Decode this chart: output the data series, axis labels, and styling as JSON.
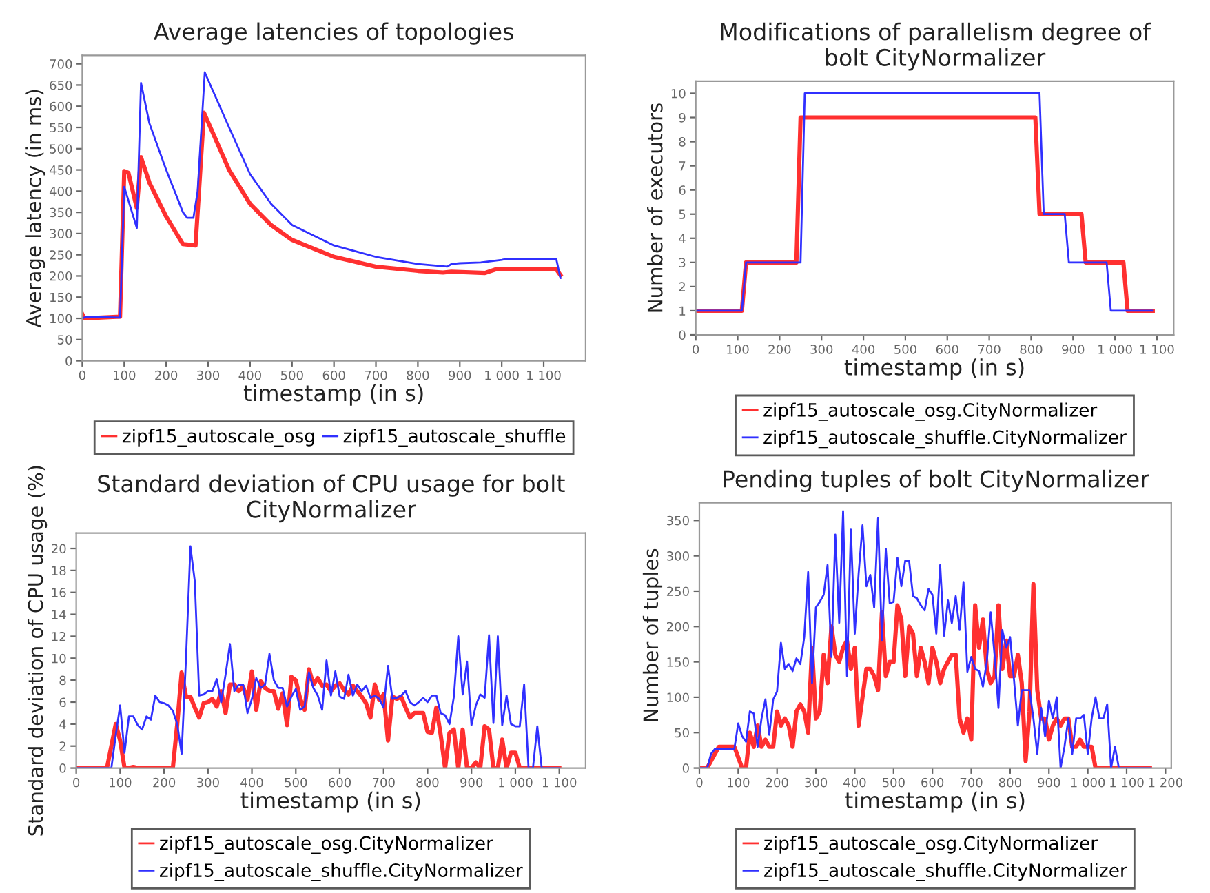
{
  "chart_data": [
    {
      "type": "line",
      "title": "Average latencies of topologies",
      "xlabel": "timestamp (in s)",
      "ylabel": "Average latency (in ms)",
      "xlim": [
        0,
        1200
      ],
      "xticks": [
        0,
        100,
        200,
        300,
        400,
        500,
        600,
        700,
        800,
        900,
        {
          "value": 1000,
          "label": "1 000"
        },
        {
          "value": 1100,
          "label": "1 100"
        }
      ],
      "ylim": [
        0,
        720
      ],
      "yticks": [
        0,
        50,
        100,
        150,
        200,
        250,
        300,
        350,
        400,
        450,
        500,
        550,
        600,
        650,
        700
      ],
      "grid": false,
      "legend": "bottom",
      "series": [
        {
          "name": "zipf15_autoscale_osg",
          "color": "#ff3030",
          "x": [
            0,
            5,
            90,
            100,
            110,
            130,
            140,
            160,
            200,
            240,
            270,
            290,
            350,
            400,
            450,
            500,
            600,
            700,
            800,
            860,
            880,
            960,
            990,
            1130,
            1140
          ],
          "values": [
            110,
            100,
            104,
            447,
            443,
            360,
            480,
            420,
            340,
            275,
            272,
            585,
            450,
            370,
            320,
            285,
            245,
            222,
            212,
            208,
            210,
            207,
            217,
            216,
            202
          ]
        },
        {
          "name": "zipf15_autoscale_shuffle",
          "color": "#3030ff",
          "x": [
            0,
            10,
            90,
            100,
            130,
            140,
            160,
            200,
            220,
            240,
            250,
            265,
            275,
            292,
            350,
            400,
            450,
            500,
            600,
            700,
            800,
            870,
            880,
            900,
            950,
            1000,
            1010,
            1130,
            1140
          ],
          "values": [
            100,
            104,
            102,
            410,
            313,
            655,
            560,
            450,
            400,
            350,
            337,
            337,
            400,
            680,
            550,
            440,
            370,
            320,
            272,
            245,
            228,
            222,
            228,
            230,
            232,
            238,
            240,
            240,
            195
          ]
        }
      ]
    },
    {
      "type": "line",
      "title": "Modifications of parallelism degree of bolt CityNormalizer",
      "xlabel": "timestamp (in s)",
      "ylabel": "Number of executors",
      "xlim": [
        0,
        1140
      ],
      "xticks": [
        0,
        100,
        200,
        300,
        400,
        500,
        600,
        700,
        800,
        900,
        {
          "value": 1000,
          "label": "1 000"
        },
        {
          "value": 1100,
          "label": "1 100"
        }
      ],
      "ylim": [
        0,
        10.5
      ],
      "yticks": [
        0,
        1,
        2,
        3,
        4,
        5,
        6,
        7,
        8,
        9,
        10
      ],
      "grid": false,
      "legend": "bottom",
      "series": [
        {
          "name": "zipf15_autoscale_osg.CityNormalizer",
          "color": "#ff3030",
          "x": [
            0,
            110,
            120,
            240,
            250,
            810,
            820,
            920,
            930,
            1020,
            1030,
            1090
          ],
          "values": [
            1,
            1,
            3,
            3,
            9,
            9,
            5,
            5,
            3,
            3,
            1,
            1
          ]
        },
        {
          "name": "zipf15_autoscale_shuffle.CityNormalizer",
          "color": "#3030ff",
          "x": [
            0,
            110,
            120,
            250,
            260,
            820,
            830,
            880,
            890,
            980,
            990,
            1090
          ],
          "values": [
            1,
            1,
            3,
            3,
            10,
            10,
            5,
            5,
            3,
            3,
            1,
            1
          ]
        }
      ]
    },
    {
      "type": "line",
      "title": "Standard deviation of CPU usage for bolt CityNormalizer",
      "xlabel": "timestamp (in s)",
      "ylabel": "Standard deviation of CPU usage (%)",
      "xlim": [
        0,
        1160
      ],
      "xticks": [
        0,
        100,
        200,
        300,
        400,
        500,
        600,
        700,
        800,
        900,
        {
          "value": 1000,
          "label": "1 000"
        },
        {
          "value": 1100,
          "label": "1 100"
        }
      ],
      "ylim": [
        0,
        21.4
      ],
      "yticks": [
        0,
        2,
        4,
        6,
        8,
        10,
        12,
        14,
        16,
        18,
        20
      ],
      "grid": false,
      "legend": "bottom",
      "series": [
        {
          "name": "zipf15_autoscale_osg.CityNormalizer",
          "color": "#ff3030",
          "x": [
            0,
            70,
            80,
            90,
            100,
            110,
            120,
            130,
            140,
            220,
            230,
            240,
            250,
            260,
            270,
            280,
            290,
            300,
            310,
            320,
            330,
            340,
            350,
            360,
            370,
            380,
            390,
            400,
            410,
            420,
            430,
            440,
            450,
            460,
            470,
            480,
            490,
            500,
            510,
            520,
            530,
            540,
            550,
            560,
            570,
            580,
            590,
            600,
            610,
            620,
            630,
            640,
            650,
            660,
            670,
            680,
            690,
            700,
            710,
            720,
            730,
            740,
            750,
            760,
            770,
            780,
            790,
            800,
            810,
            820,
            830,
            840,
            850,
            860,
            870,
            880,
            890,
            900,
            910,
            920,
            930,
            940,
            950,
            960,
            970,
            980,
            990,
            1000,
            1010,
            1020,
            1100
          ],
          "values": [
            0,
            0,
            2,
            4,
            2.5,
            0,
            0,
            0.1,
            0,
            0,
            4,
            8.7,
            6.5,
            6.5,
            5.5,
            4.6,
            5.9,
            6,
            6.3,
            5.6,
            7,
            5,
            7.6,
            7.6,
            7,
            7.4,
            6.2,
            8.8,
            5.3,
            7.9,
            7.3,
            7,
            7,
            5.4,
            6.8,
            3.9,
            8.3,
            8,
            6.3,
            5.3,
            9,
            7.6,
            8.2,
            7.5,
            7.6,
            7,
            7.5,
            7.7,
            7.1,
            6.7,
            7.5,
            7,
            6.5,
            5.9,
            4.6,
            7.6,
            6.2,
            6.7,
            2.5,
            6.5,
            6.3,
            6.5,
            5.5,
            4.6,
            5,
            5,
            5,
            3.3,
            3.2,
            5.5,
            3,
            0,
            3.2,
            3.5,
            0,
            3.5,
            0,
            0,
            0.5,
            0,
            3.8,
            3.5,
            0,
            0,
            2.6,
            0,
            1.4,
            1.4,
            0,
            0,
            0
          ]
        },
        {
          "name": "zipf15_autoscale_shuffle.CityNormalizer",
          "color": "#3030ff",
          "x": [
            0,
            80,
            90,
            100,
            110,
            120,
            130,
            140,
            150,
            160,
            170,
            180,
            190,
            200,
            210,
            220,
            230,
            240,
            250,
            260,
            270,
            280,
            290,
            300,
            310,
            320,
            330,
            340,
            350,
            360,
            370,
            380,
            390,
            400,
            410,
            420,
            430,
            440,
            450,
            460,
            470,
            480,
            490,
            500,
            510,
            520,
            530,
            540,
            550,
            560,
            570,
            580,
            590,
            600,
            610,
            620,
            630,
            640,
            650,
            660,
            670,
            680,
            690,
            700,
            710,
            720,
            730,
            740,
            750,
            760,
            770,
            780,
            790,
            800,
            810,
            820,
            830,
            840,
            850,
            860,
            870,
            880,
            890,
            900,
            910,
            920,
            930,
            940,
            950,
            960,
            970,
            980,
            990,
            1000,
            1010,
            1020,
            1030,
            1040,
            1050,
            1060,
            1100
          ],
          "values": [
            0,
            0,
            3,
            5.7,
            1.4,
            4.7,
            4.7,
            3.9,
            3.5,
            4.7,
            4.4,
            6.6,
            6,
            5.9,
            5.7,
            5.2,
            4,
            1.3,
            10,
            20.2,
            17,
            6.6,
            6.7,
            7,
            7,
            8.1,
            6,
            8.5,
            11.3,
            7,
            7.6,
            7.6,
            5,
            6.3,
            8.2,
            7.3,
            7.6,
            10.4,
            8,
            7.3,
            7.3,
            5.6,
            6.5,
            7.2,
            5.3,
            5.6,
            8.7,
            7.3,
            6.6,
            5.3,
            9.8,
            6.6,
            8.8,
            6.5,
            6.3,
            8.5,
            6.6,
            7.6,
            7,
            7.5,
            6.4,
            6.6,
            6.3,
            5.5,
            9.3,
            6.3,
            6.4,
            6.6,
            7,
            6,
            5.7,
            6,
            6.4,
            6,
            6.6,
            6.6,
            5,
            4.8,
            4,
            6.5,
            12,
            6.7,
            9.7,
            3.9,
            5.7,
            6.7,
            6.4,
            12.1,
            4.1,
            12,
            3.9,
            6.6,
            4,
            3.8,
            3.8,
            7.6,
            0,
            0,
            3.8,
            0,
            0
          ]
        }
      ]
    },
    {
      "type": "line",
      "title": "Pending tuples of bolt CityNormalizer",
      "xlabel": "timestamp (in s)",
      "ylabel": "Number of tuples",
      "xlim": [
        0,
        1215
      ],
      "xticks": [
        0,
        100,
        200,
        300,
        400,
        500,
        600,
        700,
        800,
        900,
        {
          "value": 1000,
          "label": "1 000"
        },
        {
          "value": 1100,
          "label": "1 100"
        },
        {
          "value": 1200,
          "label": "1 200"
        }
      ],
      "ylim": [
        0,
        375
      ],
      "yticks": [
        0,
        50,
        100,
        150,
        200,
        250,
        300,
        350
      ],
      "grid": false,
      "legend": "bottom",
      "series": [
        {
          "name": "zipf15_autoscale_osg.CityNormalizer",
          "color": "#ff3030",
          "x": [
            0,
            20,
            50,
            90,
            100,
            110,
            120,
            130,
            140,
            150,
            160,
            170,
            180,
            190,
            200,
            210,
            220,
            230,
            240,
            250,
            260,
            270,
            280,
            290,
            300,
            310,
            320,
            330,
            340,
            350,
            360,
            370,
            380,
            390,
            400,
            410,
            420,
            430,
            440,
            450,
            460,
            470,
            480,
            490,
            500,
            510,
            520,
            530,
            540,
            550,
            560,
            570,
            580,
            590,
            600,
            610,
            620,
            630,
            640,
            650,
            660,
            670,
            680,
            690,
            700,
            710,
            720,
            730,
            740,
            750,
            760,
            770,
            780,
            790,
            800,
            810,
            820,
            830,
            840,
            850,
            860,
            870,
            880,
            890,
            900,
            910,
            920,
            930,
            940,
            950,
            960,
            970,
            980,
            990,
            1000,
            1010,
            1020,
            1100,
            1160
          ],
          "values": [
            0,
            0,
            30,
            30,
            15,
            0,
            0,
            50,
            30,
            60,
            30,
            40,
            30,
            30,
            80,
            60,
            70,
            60,
            30,
            80,
            90,
            80,
            50,
            170,
            70,
            80,
            160,
            120,
            200,
            160,
            150,
            170,
            180,
            140,
            170,
            60,
            100,
            140,
            140,
            130,
            110,
            220,
            130,
            150,
            150,
            230,
            210,
            130,
            200,
            190,
            130,
            170,
            150,
            120,
            170,
            150,
            120,
            140,
            150,
            160,
            160,
            70,
            50,
            70,
            40,
            230,
            170,
            210,
            140,
            120,
            130,
            230,
            140,
            180,
            130,
            130,
            160,
            120,
            10,
            80,
            260,
            110,
            70,
            70,
            40,
            60,
            70,
            60,
            70,
            70,
            30,
            30,
            40,
            30,
            30,
            30,
            0,
            0,
            0
          ]
        },
        {
          "name": "zipf15_autoscale_shuffle.CityNormalizer",
          "color": "#3030ff",
          "x": [
            0,
            20,
            30,
            40,
            90,
            100,
            110,
            120,
            130,
            140,
            150,
            160,
            170,
            180,
            190,
            200,
            210,
            220,
            230,
            240,
            250,
            260,
            270,
            280,
            290,
            300,
            310,
            320,
            330,
            340,
            350,
            360,
            370,
            380,
            390,
            400,
            410,
            420,
            430,
            440,
            450,
            460,
            470,
            480,
            490,
            500,
            510,
            520,
            530,
            540,
            550,
            560,
            570,
            580,
            590,
            600,
            610,
            620,
            630,
            640,
            650,
            660,
            670,
            680,
            690,
            700,
            710,
            720,
            730,
            740,
            750,
            760,
            770,
            780,
            790,
            800,
            810,
            820,
            830,
            840,
            850,
            860,
            870,
            880,
            890,
            900,
            910,
            920,
            930,
            940,
            950,
            960,
            970,
            980,
            990,
            1000,
            1010,
            1020,
            1030,
            1040,
            1050,
            1060,
            1070,
            1080,
            1160
          ],
          "values": [
            0,
            0,
            20,
            27,
            27,
            63,
            45,
            37,
            80,
            77,
            30,
            70,
            97,
            47,
            97,
            108,
            177,
            140,
            147,
            137,
            155,
            147,
            185,
            277,
            120,
            227,
            235,
            245,
            287,
            157,
            330,
            205,
            363,
            130,
            337,
            190,
            275,
            343,
            257,
            273,
            227,
            353,
            180,
            310,
            233,
            235,
            297,
            257,
            293,
            293,
            243,
            240,
            230,
            223,
            253,
            245,
            190,
            287,
            187,
            237,
            205,
            243,
            195,
            263,
            136,
            157,
            140,
            137,
            115,
            150,
            220,
            160,
            85,
            195,
            170,
            185,
            125,
            60,
            110,
            110,
            110,
            70,
            20,
            85,
            45,
            95,
            70,
            100,
            0,
            30,
            70,
            20,
            70,
            70,
            75,
            20,
            70,
            100,
            70,
            70,
            90,
            0,
            30,
            0,
            0
          ]
        }
      ]
    }
  ]
}
